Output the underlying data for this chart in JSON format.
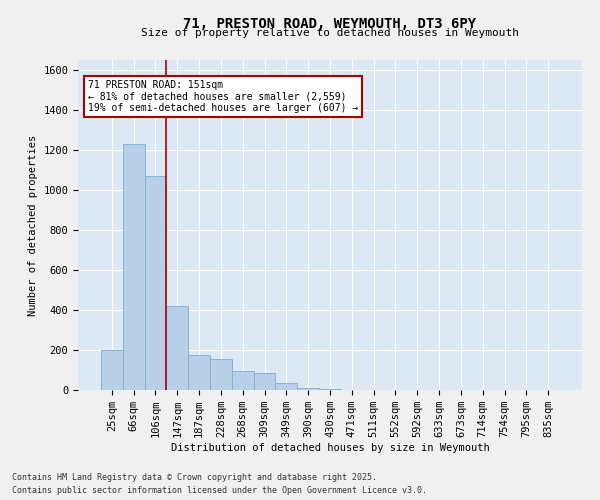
{
  "title1": "71, PRESTON ROAD, WEYMOUTH, DT3 6PY",
  "title2": "Size of property relative to detached houses in Weymouth",
  "xlabel": "Distribution of detached houses by size in Weymouth",
  "ylabel": "Number of detached properties",
  "categories": [
    "25sqm",
    "66sqm",
    "106sqm",
    "147sqm",
    "187sqm",
    "228sqm",
    "268sqm",
    "309sqm",
    "349sqm",
    "390sqm",
    "430sqm",
    "471sqm",
    "511sqm",
    "552sqm",
    "592sqm",
    "633sqm",
    "673sqm",
    "714sqm",
    "754sqm",
    "795sqm",
    "835sqm"
  ],
  "values": [
    200,
    1230,
    1070,
    420,
    175,
    155,
    95,
    85,
    35,
    10,
    5,
    0,
    0,
    0,
    0,
    0,
    0,
    0,
    0,
    0,
    0
  ],
  "bar_color": "#b8cfe8",
  "bar_edge_color": "#7aaed4",
  "background_color": "#dde8f5",
  "grid_color": "#ffffff",
  "vline_color": "#aa0000",
  "vline_pos": 2.5,
  "annotation_title": "71 PRESTON ROAD: 151sqm",
  "annotation_line1": "← 81% of detached houses are smaller (2,559)",
  "annotation_line2": "19% of semi-detached houses are larger (607) →",
  "annotation_box_facecolor": "#ffffff",
  "annotation_box_edgecolor": "#aa0000",
  "ylim": [
    0,
    1650
  ],
  "yticks": [
    0,
    200,
    400,
    600,
    800,
    1000,
    1200,
    1400,
    1600
  ],
  "footnote1": "Contains HM Land Registry data © Crown copyright and database right 2025.",
  "footnote2": "Contains public sector information licensed under the Open Government Licence v3.0.",
  "figsize": [
    6.0,
    5.0
  ],
  "dpi": 100,
  "fig_facecolor": "#f0f0f0",
  "title1_fontsize": 10,
  "title2_fontsize": 8.5,
  "axis_fontsize": 7.5,
  "tick_fontsize": 7.5,
  "footnote_fontsize": 6.0
}
